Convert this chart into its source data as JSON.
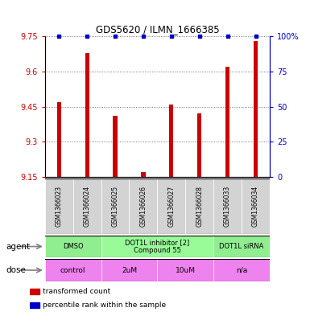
{
  "title": "GDS5620 / ILMN_1666385",
  "samples": [
    "GSM1366023",
    "GSM1366024",
    "GSM1366025",
    "GSM1366026",
    "GSM1366027",
    "GSM1366028",
    "GSM1366033",
    "GSM1366034"
  ],
  "red_values": [
    9.47,
    9.68,
    9.41,
    9.17,
    9.46,
    9.42,
    9.62,
    9.73
  ],
  "blue_values": [
    100,
    100,
    100,
    100,
    100,
    100,
    100,
    100
  ],
  "ylim_left": [
    9.15,
    9.75
  ],
  "ylim_right": [
    0,
    100
  ],
  "yticks_left": [
    9.15,
    9.3,
    9.45,
    9.6,
    9.75
  ],
  "yticks_right": [
    0,
    25,
    50,
    75,
    100
  ],
  "ytick_labels_left": [
    "9.15",
    "9.3",
    "9.45",
    "9.6",
    "9.75"
  ],
  "ytick_labels_right": [
    "0",
    "25",
    "50",
    "75",
    "100%"
  ],
  "agent_groups": [
    {
      "label": "DMSO",
      "start": 0,
      "end": 2,
      "color": "#90ee90"
    },
    {
      "label": "DOT1L inhibitor [2]\nCompound 55",
      "start": 2,
      "end": 6,
      "color": "#98fb98"
    },
    {
      "label": "DOT1L siRNA",
      "start": 6,
      "end": 8,
      "color": "#90ee90"
    }
  ],
  "dose_groups": [
    {
      "label": "control",
      "start": 0,
      "end": 2,
      "color": "#ee82ee"
    },
    {
      "label": "2uM",
      "start": 2,
      "end": 4,
      "color": "#ee82ee"
    },
    {
      "label": "10uM",
      "start": 4,
      "end": 6,
      "color": "#ee82ee"
    },
    {
      "label": "n/a",
      "start": 6,
      "end": 8,
      "color": "#ee82ee"
    }
  ],
  "legend_items": [
    {
      "color": "#cc0000",
      "label": "transformed count"
    },
    {
      "color": "#0000cc",
      "label": "percentile rank within the sample"
    }
  ],
  "bar_color": "#cc0000",
  "dot_color": "#0000cc",
  "left_axis_color": "#cc0000",
  "right_axis_color": "#0000cc",
  "sample_box_color": "#d3d3d3",
  "grid_color": "#555555",
  "agent_row_label": "agent",
  "dose_row_label": "dose",
  "bar_width": 0.15
}
